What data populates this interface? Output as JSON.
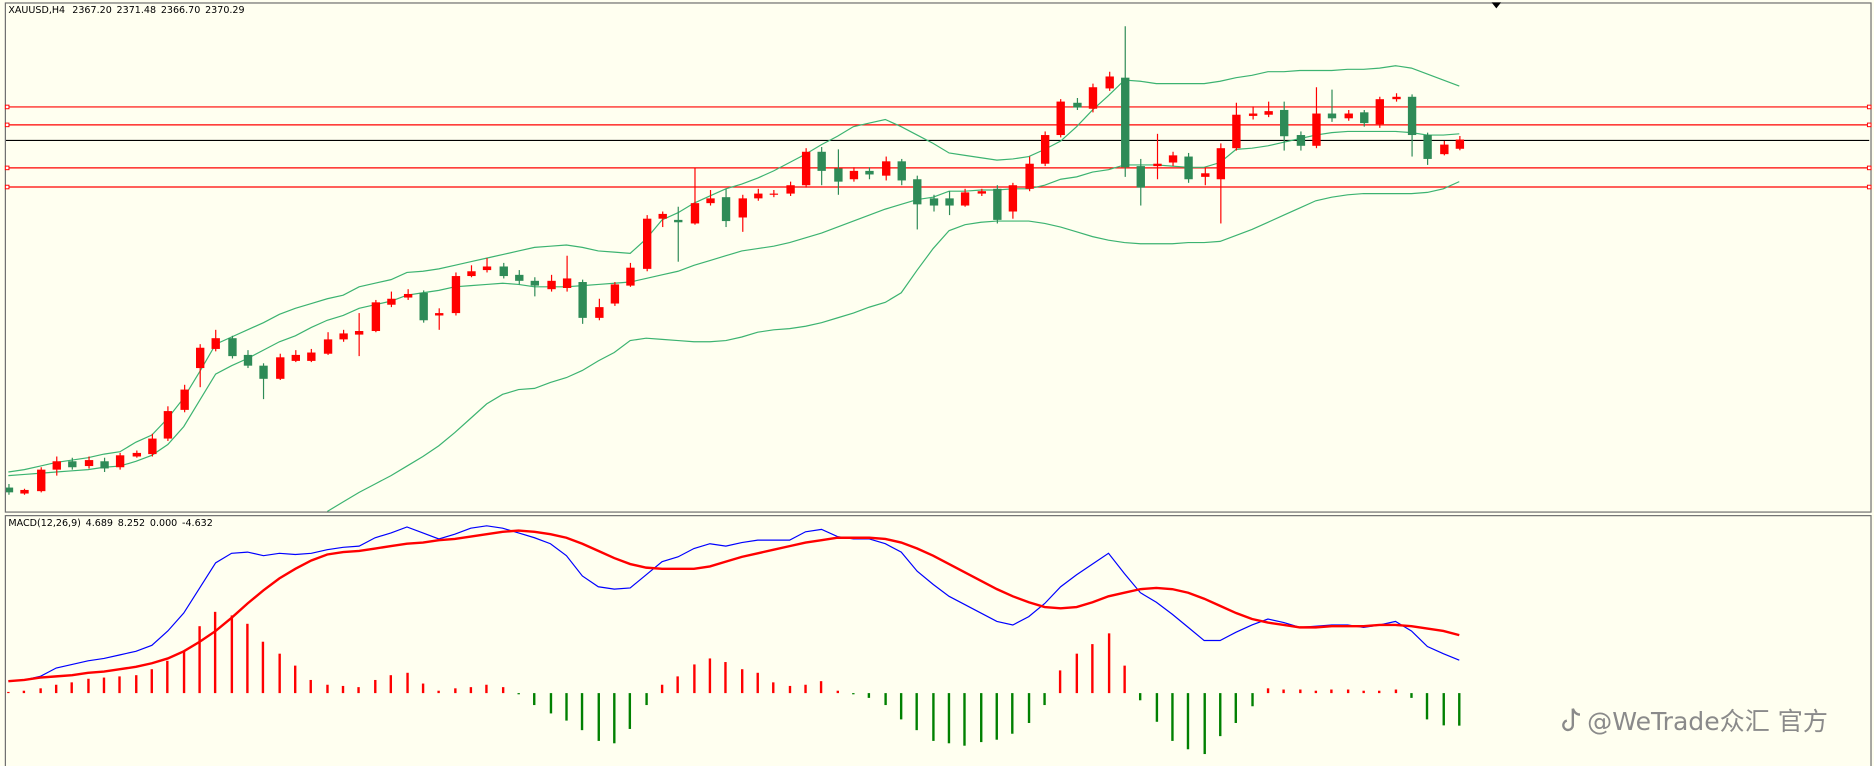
{
  "chart_data": [
    {
      "type": "candlestick",
      "title": "XAUUSD,H4",
      "ohlc_labels": [
        "2367.20",
        "2371.48",
        "2366.70",
        "2370.29"
      ],
      "up_color": "#ff0000",
      "down_color": "#2e8b57",
      "ylim": [
        2245.8,
        2417
      ],
      "open": [
        2253.8,
        2251.8,
        2252.6,
        2259.8,
        2262.6,
        2261.0,
        2262.6,
        2260.6,
        2264.2,
        2265.0,
        2270.2,
        2279.8,
        2293.8,
        2300.2,
        2303.8,
        2298.2,
        2294.6,
        2290.2,
        2296.2,
        2296.2,
        2298.6,
        2303.4,
        2305.0,
        2306.2,
        2315.0,
        2317.4,
        2319.0,
        2311.4,
        2312.2,
        2324.6,
        2326.6,
        2327.8,
        2325.0,
        2323.0,
        2320.2,
        2320.6,
        2322.6,
        2310.6,
        2315.4,
        2321.4,
        2327.0,
        2343.8,
        2343.4,
        2342.2,
        2349.0,
        2351.0,
        2344.2,
        2350.6,
        2351.8,
        2352.2,
        2355.0,
        2366.2,
        2360.6,
        2357.0,
        2359.8,
        2358.2,
        2363.0,
        2357.0,
        2350.6,
        2350.6,
        2348.2,
        2352.2,
        2353.8,
        2346.2,
        2353.8,
        2362.2,
        2371.8,
        2382.6,
        2380.6,
        2387.4,
        2391.0,
        2361.4,
        2361.4,
        2362.6,
        2364.6,
        2357.8,
        2357.0,
        2367.4,
        2378.2,
        2378.6,
        2380.2,
        2371.8,
        2368.2,
        2379.0,
        2377.4,
        2379.4,
        2375.4,
        2383.8,
        2384.6,
        2371.8,
        2365.4,
        2367.2
      ],
      "high": [
        2255.0,
        2253.4,
        2260.6,
        2264.2,
        2263.8,
        2264.2,
        2263.8,
        2265.4,
        2266.2,
        2271.8,
        2281.0,
        2288.2,
        2301.8,
        2306.6,
        2304.6,
        2299.8,
        2295.4,
        2298.6,
        2299.8,
        2300.2,
        2305.8,
        2306.6,
        2312.2,
        2316.6,
        2319.4,
        2320.2,
        2319.8,
        2313.8,
        2325.8,
        2328.2,
        2330.6,
        2329.0,
        2326.6,
        2324.2,
        2325.0,
        2331.4,
        2323.4,
        2317.0,
        2322.6,
        2329.0,
        2345.0,
        2346.2,
        2347.8,
        2360.6,
        2353.4,
        2353.8,
        2351.8,
        2353.8,
        2353.4,
        2356.2,
        2367.4,
        2367.8,
        2367.0,
        2361.0,
        2361.0,
        2364.6,
        2363.8,
        2358.2,
        2351.8,
        2353.0,
        2353.8,
        2353.8,
        2355.0,
        2355.8,
        2364.6,
        2373.0,
        2383.8,
        2384.2,
        2389.0,
        2393.0,
        2408.2,
        2363.8,
        2372.2,
        2366.2,
        2365.8,
        2361.0,
        2369.0,
        2382.6,
        2381.4,
        2383.0,
        2383.0,
        2373.0,
        2387.8,
        2387.0,
        2380.2,
        2380.2,
        2384.6,
        2385.8,
        2385.4,
        2372.6,
        2369.8,
        2371.48
      ],
      "low": [
        2251.4,
        2251.4,
        2252.2,
        2257.8,
        2259.8,
        2260.2,
        2259.0,
        2259.8,
        2263.8,
        2264.2,
        2269.4,
        2279.0,
        2287.4,
        2299.4,
        2297.0,
        2293.8,
        2283.4,
        2289.8,
        2295.8,
        2295.8,
        2298.2,
        2302.6,
        2297.8,
        2305.8,
        2314.2,
        2316.6,
        2309.0,
        2306.6,
        2311.4,
        2324.2,
        2325.8,
        2323.8,
        2321.8,
        2317.8,
        2319.4,
        2319.4,
        2308.6,
        2309.8,
        2314.6,
        2321.0,
        2326.2,
        2341.0,
        2329.4,
        2341.8,
        2348.2,
        2341.0,
        2339.4,
        2349.8,
        2351.0,
        2351.4,
        2354.2,
        2355.0,
        2351.8,
        2356.2,
        2357.0,
        2356.6,
        2355.0,
        2340.2,
        2346.2,
        2345.0,
        2347.8,
        2351.4,
        2342.2,
        2343.8,
        2353.0,
        2361.4,
        2371.0,
        2380.2,
        2379.4,
        2386.6,
        2357.8,
        2348.2,
        2357.0,
        2361.4,
        2355.8,
        2355.0,
        2342.2,
        2366.6,
        2377.0,
        2377.8,
        2366.6,
        2366.6,
        2367.4,
        2376.2,
        2376.6,
        2374.6,
        2374.2,
        2383.0,
        2364.6,
        2361.8,
        2365.0,
        2366.7
      ],
      "close": [
        2252.2,
        2253.0,
        2259.8,
        2262.6,
        2260.6,
        2263.0,
        2260.2,
        2264.6,
        2265.4,
        2270.2,
        2279.4,
        2286.6,
        2300.6,
        2303.8,
        2297.8,
        2294.6,
        2290.2,
        2297.4,
        2298.2,
        2299.0,
        2303.4,
        2305.4,
        2306.2,
        2315.8,
        2317.0,
        2318.6,
        2309.8,
        2312.2,
        2324.6,
        2326.2,
        2327.8,
        2324.6,
        2323.0,
        2321.4,
        2323.0,
        2323.8,
        2310.6,
        2314.2,
        2321.8,
        2327.4,
        2343.8,
        2345.4,
        2342.6,
        2349.0,
        2350.6,
        2343.0,
        2350.6,
        2352.2,
        2352.2,
        2355.0,
        2366.2,
        2359.8,
        2356.2,
        2359.8,
        2358.6,
        2363.0,
        2356.6,
        2348.6,
        2348.2,
        2348.2,
        2352.6,
        2353.0,
        2343.4,
        2355.0,
        2362.2,
        2371.8,
        2383.0,
        2381.0,
        2387.8,
        2391.4,
        2361.0,
        2354.2,
        2362.2,
        2365.0,
        2357.0,
        2359.0,
        2367.4,
        2378.6,
        2379.0,
        2379.8,
        2371.4,
        2368.2,
        2379.0,
        2377.4,
        2379.0,
        2375.8,
        2383.8,
        2384.6,
        2371.8,
        2363.8,
        2368.6,
        2370.29
      ],
      "overlays": [
        {
          "color": "#3cb371",
          "values": [
            2259.0,
            2259.8,
            2261.0,
            2262.2,
            2263.0,
            2263.8,
            2265.0,
            2265.8,
            2269.0,
            2271.4,
            2277.0,
            2283.8,
            2292.6,
            2301.8,
            2304.2,
            2306.6,
            2309.0,
            2311.8,
            2313.8,
            2315.4,
            2317.0,
            2318.2,
            2321.0,
            2322.2,
            2323.4,
            2325.8,
            2326.2,
            2327.0,
            2328.2,
            2329.4,
            2330.6,
            2331.8,
            2333.0,
            2334.2,
            2334.6,
            2335.0,
            2334.2,
            2333.0,
            2332.6,
            2332.2,
            2337.0,
            2343.4,
            2345.8,
            2349.0,
            2351.4,
            2353.8,
            2355.4,
            2357.4,
            2359.8,
            2362.6,
            2365.4,
            2368.6,
            2371.4,
            2374.6,
            2375.8,
            2377.0,
            2374.6,
            2371.8,
            2369.0,
            2365.8,
            2365.0,
            2364.2,
            2363.4,
            2363.8,
            2364.6,
            2367.0,
            2369.8,
            2374.6,
            2380.2,
            2385.0,
            2390.2,
            2389.8,
            2389.0,
            2389.0,
            2389.0,
            2389.0,
            2389.8,
            2391.0,
            2391.8,
            2393.0,
            2393.0,
            2393.4,
            2393.4,
            2393.4,
            2393.8,
            2393.8,
            2394.2,
            2395.0,
            2394.2,
            2392.2,
            2390.2,
            2388.2
          ]
        },
        {
          "color": "#3cb371",
          "values": [
            2257.8,
            2258.2,
            2258.6,
            2259.0,
            2259.4,
            2259.8,
            2260.6,
            2261.0,
            2262.6,
            2264.6,
            2268.2,
            2274.2,
            2283.0,
            2291.8,
            2294.6,
            2297.0,
            2299.8,
            2302.6,
            2304.6,
            2307.4,
            2309.8,
            2311.4,
            2313.8,
            2315.0,
            2316.2,
            2318.2,
            2319.0,
            2319.8,
            2321.0,
            2321.4,
            2321.8,
            2322.2,
            2321.8,
            2321.0,
            2321.0,
            2321.0,
            2321.4,
            2321.8,
            2322.2,
            2322.6,
            2323.8,
            2325.0,
            2326.2,
            2328.2,
            2329.8,
            2331.4,
            2333.0,
            2333.8,
            2334.6,
            2335.8,
            2337.4,
            2339.0,
            2341.0,
            2343.0,
            2345.0,
            2347.0,
            2348.6,
            2350.2,
            2351.0,
            2353.0,
            2353.0,
            2353.4,
            2353.4,
            2353.8,
            2353.8,
            2355.0,
            2357.0,
            2357.8,
            2359.4,
            2360.2,
            2361.8,
            2361.8,
            2361.8,
            2361.4,
            2361.0,
            2361.0,
            2362.6,
            2367.0,
            2367.4,
            2368.2,
            2369.4,
            2370.6,
            2371.8,
            2372.6,
            2373.0,
            2373.0,
            2373.0,
            2373.0,
            2372.6,
            2371.8,
            2371.8,
            2372.2
          ]
        },
        {
          "color": "#3cb371",
          "values": [
            null,
            null,
            null,
            null,
            null,
            null,
            null,
            null,
            null,
            null,
            null,
            null,
            null,
            null,
            null,
            null,
            null,
            null,
            null,
            null,
            2245.8,
            2249.0,
            2252.2,
            2255.0,
            2257.8,
            2261.0,
            2264.2,
            2267.8,
            2272.2,
            2277.0,
            2281.8,
            2285.0,
            2286.6,
            2287.0,
            2289.0,
            2290.6,
            2293.0,
            2296.2,
            2299.0,
            2303.0,
            2303.8,
            2303.4,
            2303.0,
            2302.6,
            2302.6,
            2303.0,
            2304.2,
            2305.8,
            2306.6,
            2307.0,
            2307.8,
            2309.0,
            2310.6,
            2312.2,
            2314.2,
            2315.8,
            2319.0,
            2326.6,
            2333.8,
            2339.8,
            2341.8,
            2342.6,
            2343.0,
            2343.0,
            2343.0,
            2342.2,
            2341.0,
            2339.4,
            2337.8,
            2336.6,
            2335.8,
            2335.4,
            2335.4,
            2335.4,
            2335.8,
            2335.8,
            2336.2,
            2338.2,
            2340.2,
            2342.6,
            2345.0,
            2347.4,
            2349.8,
            2351.0,
            2351.8,
            2352.2,
            2352.2,
            2352.2,
            2352.2,
            2352.6,
            2353.8,
            2356.2
          ]
        }
      ],
      "levels": {
        "color": "#ff0000",
        "values": [
          2381.4,
          2375.4,
          2361.0,
          2354.6
        ]
      },
      "price_line_color": "#000000"
    },
    {
      "type": "macd",
      "title": "MACD(12,26,9)",
      "readout": [
        "4.689",
        "8.252",
        "0.000",
        "-4.632"
      ],
      "ylim": [
        -10.37,
        25.5
      ],
      "histogram": {
        "up_color": "#ff0000",
        "down_color": "#008000",
        "values": [
          0.17,
          0.34,
          0.68,
          1.19,
          1.53,
          2.04,
          2.21,
          2.38,
          2.55,
          3.4,
          4.59,
          5.95,
          9.52,
          11.56,
          11.05,
          9.86,
          7.31,
          5.61,
          3.91,
          1.87,
          1.19,
          1.02,
          0.85,
          1.87,
          2.55,
          2.89,
          1.36,
          0.34,
          0.68,
          0.85,
          1.19,
          0.85,
          -0.17,
          -1.7,
          -2.89,
          -3.91,
          -5.27,
          -6.8,
          -7.14,
          -5.1,
          -1.7,
          1.19,
          2.38,
          4.08,
          4.93,
          4.42,
          3.4,
          2.89,
          1.53,
          1.02,
          1.19,
          1.7,
          0.34,
          -0.17,
          -0.68,
          -1.7,
          -3.74,
          -5.27,
          -6.8,
          -7.14,
          -7.48,
          -6.97,
          -6.63,
          -5.78,
          -4.25,
          -1.7,
          3.23,
          5.61,
          6.97,
          8.5,
          3.91,
          -1.02,
          -4.08,
          -6.8,
          -7.99,
          -8.67,
          -6.12,
          -4.25,
          -1.87,
          0.68,
          0.51,
          0.51,
          0.34,
          0.51,
          0.51,
          0.34,
          0.34,
          0.51,
          -0.68,
          -3.74,
          -4.59,
          -4.632
        ]
      },
      "series": [
        {
          "color": "#0000ff",
          "width": 1,
          "values": [
            1.7,
            1.87,
            2.38,
            3.57,
            4.08,
            4.59,
            4.93,
            5.44,
            5.95,
            6.8,
            8.84,
            11.39,
            14.96,
            18.53,
            19.89,
            20.06,
            19.55,
            19.89,
            19.72,
            19.89,
            20.4,
            20.74,
            20.91,
            22.1,
            22.78,
            23.63,
            22.78,
            21.93,
            22.61,
            23.46,
            23.8,
            23.46,
            22.78,
            22.1,
            21.25,
            19.55,
            16.66,
            15.13,
            14.79,
            14.96,
            16.83,
            18.7,
            19.38,
            20.57,
            21.25,
            20.91,
            21.42,
            21.76,
            21.76,
            21.76,
            22.95,
            23.29,
            22.27,
            21.93,
            21.93,
            21.25,
            20.06,
            17.34,
            15.47,
            13.77,
            12.58,
            11.39,
            10.2,
            9.69,
            10.88,
            12.75,
            15.13,
            16.83,
            18.36,
            19.89,
            17.0,
            14.28,
            12.92,
            11.22,
            9.35,
            7.48,
            7.48,
            8.67,
            9.69,
            10.54,
            10.03,
            9.35,
            9.52,
            9.69,
            9.69,
            9.35,
            9.69,
            10.2,
            8.84,
            6.63,
            5.61,
            4.689
          ]
        },
        {
          "color": "#ff0000",
          "width": 2,
          "values": [
            1.7,
            1.87,
            2.21,
            2.38,
            2.55,
            2.89,
            3.06,
            3.4,
            3.74,
            4.25,
            4.93,
            5.95,
            7.31,
            8.84,
            10.71,
            12.75,
            14.62,
            16.32,
            17.68,
            18.87,
            19.72,
            20.06,
            20.23,
            20.57,
            20.91,
            21.25,
            21.42,
            21.76,
            21.93,
            22.27,
            22.61,
            22.95,
            23.12,
            22.95,
            22.61,
            22.1,
            21.25,
            20.23,
            19.21,
            18.36,
            17.85,
            17.68,
            17.68,
            17.68,
            18.02,
            18.7,
            19.38,
            19.89,
            20.4,
            20.91,
            21.42,
            21.76,
            22.1,
            22.1,
            22.1,
            21.93,
            21.42,
            20.57,
            19.55,
            18.36,
            17.17,
            15.98,
            14.79,
            13.77,
            12.92,
            12.24,
            12.07,
            12.24,
            12.92,
            13.77,
            14.28,
            14.79,
            14.96,
            14.79,
            14.28,
            13.43,
            12.41,
            11.39,
            10.54,
            10.03,
            9.69,
            9.35,
            9.35,
            9.52,
            9.52,
            9.52,
            9.69,
            9.69,
            9.52,
            9.18,
            8.84,
            8.252
          ]
        }
      ]
    }
  ],
  "watermark": "@WeTrade众汇 官方"
}
